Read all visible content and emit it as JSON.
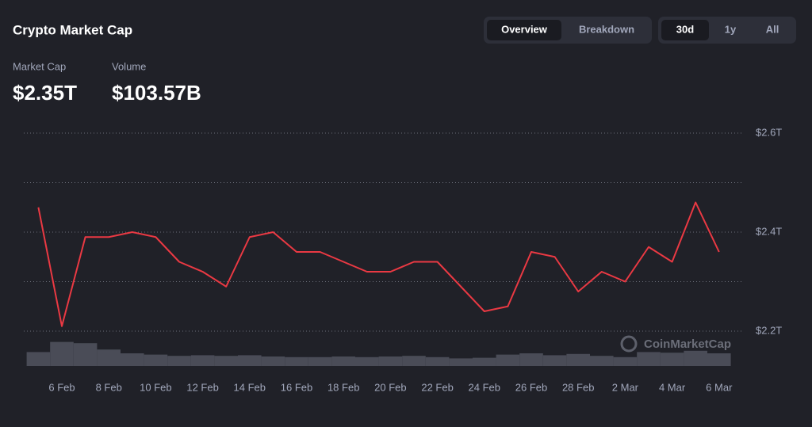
{
  "header": {
    "title": "Crypto Market Cap"
  },
  "stats": [
    {
      "label": "Market Cap",
      "value": "$2.35T"
    },
    {
      "label": "Volume",
      "value": "$103.57B"
    }
  ],
  "view_tabs": [
    "Overview",
    "Breakdown"
  ],
  "range_tabs": [
    "30d",
    "1y",
    "All"
  ],
  "watermark": "CoinMarketCap",
  "chart_data": {
    "type": "line",
    "x": [
      "5 Feb",
      "6 Feb",
      "7 Feb",
      "8 Feb",
      "9 Feb",
      "10 Feb",
      "11 Feb",
      "12 Feb",
      "13 Feb",
      "14 Feb",
      "15 Feb",
      "16 Feb",
      "17 Feb",
      "18 Feb",
      "19 Feb",
      "20 Feb",
      "21 Feb",
      "22 Feb",
      "23 Feb",
      "24 Feb",
      "25 Feb",
      "26 Feb",
      "27 Feb",
      "28 Feb",
      "1 Mar",
      "2 Mar",
      "3 Mar",
      "4 Mar",
      "5 Mar",
      "6 Mar"
    ],
    "xticks": [
      "6 Feb",
      "8 Feb",
      "10 Feb",
      "12 Feb",
      "14 Feb",
      "16 Feb",
      "18 Feb",
      "20 Feb",
      "22 Feb",
      "24 Feb",
      "26 Feb",
      "28 Feb",
      "2 Mar",
      "4 Mar",
      "6 Mar"
    ],
    "series": [
      {
        "name": "Market Cap",
        "color": "#ea3943",
        "values": [
          2.45,
          2.21,
          2.39,
          2.39,
          2.4,
          2.39,
          2.34,
          2.32,
          2.29,
          2.39,
          2.4,
          2.36,
          2.36,
          2.34,
          2.32,
          2.32,
          2.34,
          2.34,
          2.29,
          2.24,
          2.25,
          2.36,
          2.35,
          2.28,
          2.32,
          2.3,
          2.37,
          2.34,
          2.46,
          2.36
        ]
      },
      {
        "name": "Volume",
        "color": "#4a4c57",
        "values": [
          110,
          190,
          180,
          130,
          100,
          90,
          80,
          85,
          80,
          85,
          75,
          70,
          70,
          75,
          70,
          75,
          80,
          70,
          60,
          65,
          90,
          100,
          85,
          95,
          80,
          70,
          110,
          105,
          120,
          100
        ]
      }
    ],
    "ylim": [
      2.2,
      2.6
    ],
    "yticks": [
      {
        "value": 2.2,
        "label": "$2.2T"
      },
      {
        "value": 2.3,
        "label": null
      },
      {
        "value": 2.4,
        "label": "$2.4T"
      },
      {
        "value": 2.5,
        "label": null
      },
      {
        "value": 2.6,
        "label": "$2.6T"
      }
    ],
    "grid": true
  }
}
